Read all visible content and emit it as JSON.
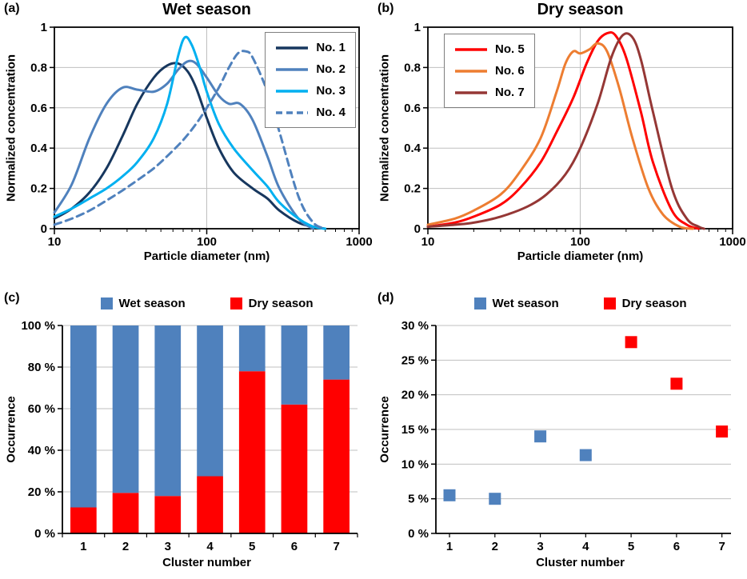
{
  "figure": {
    "panels": {
      "a": {
        "label": "(a)",
        "title": "Wet season",
        "xlabel": "Particle diameter (nm)",
        "ylabel": "Normalized concentration"
      },
      "b": {
        "label": "(b)",
        "title": "Dry season",
        "xlabel": "Particle diameter (nm)",
        "ylabel": "Normalized concentration"
      },
      "c": {
        "label": "(c)",
        "xlabel": "Cluster number",
        "ylabel": "Occurrence"
      },
      "d": {
        "label": "(d)",
        "xlabel": "Cluster number",
        "ylabel": "Occurrence"
      }
    },
    "colors": {
      "wet_blue": "#4F81BD",
      "dry_red": "#FF0000",
      "gridline": "#BFBFBF"
    }
  },
  "chart_data": [
    {
      "id": "a",
      "type": "line",
      "title": "Wet season",
      "xlabel": "Particle diameter (nm)",
      "ylabel": "Normalized concentration",
      "xscale": "log",
      "xlim": [
        10,
        1000
      ],
      "ylim": [
        0,
        1
      ],
      "xticks": [
        10,
        100,
        1000
      ],
      "yticks": [
        0,
        0.2,
        0.4,
        0.6,
        0.8,
        1
      ],
      "xgrid": [
        100
      ],
      "legend_position": "top-right",
      "series": [
        {
          "name": "No. 1",
          "color": "#17375E",
          "dash": null,
          "x": [
            10,
            13,
            17,
            22,
            28,
            35,
            45,
            55,
            65,
            75,
            85,
            100,
            120,
            150,
            200,
            250,
            300,
            400,
            500,
            600
          ],
          "y": [
            0.05,
            0.1,
            0.18,
            0.3,
            0.46,
            0.62,
            0.75,
            0.81,
            0.82,
            0.78,
            0.7,
            0.55,
            0.4,
            0.28,
            0.2,
            0.15,
            0.09,
            0.03,
            0.01,
            0.0
          ]
        },
        {
          "name": "No. 2",
          "color": "#4F81BD",
          "dash": null,
          "x": [
            10,
            13,
            17,
            22,
            28,
            35,
            45,
            55,
            65,
            75,
            85,
            100,
            120,
            140,
            165,
            200,
            250,
            300,
            400,
            500
          ],
          "y": [
            0.08,
            0.22,
            0.45,
            0.62,
            0.7,
            0.69,
            0.68,
            0.72,
            0.79,
            0.83,
            0.82,
            0.75,
            0.66,
            0.62,
            0.62,
            0.54,
            0.36,
            0.2,
            0.05,
            0.0
          ]
        },
        {
          "name": "No. 3",
          "color": "#00B0F0",
          "dash": null,
          "x": [
            10,
            13,
            17,
            22,
            28,
            35,
            45,
            55,
            65,
            72,
            80,
            90,
            100,
            120,
            150,
            200,
            250,
            300,
            400,
            500,
            600
          ],
          "y": [
            0.06,
            0.1,
            0.15,
            0.2,
            0.26,
            0.33,
            0.45,
            0.62,
            0.86,
            0.95,
            0.91,
            0.8,
            0.68,
            0.52,
            0.4,
            0.29,
            0.21,
            0.13,
            0.05,
            0.01,
            0.0
          ]
        },
        {
          "name": "No. 4",
          "color": "#4F81BD",
          "dash": "9,6",
          "x": [
            10,
            13,
            17,
            22,
            28,
            35,
            45,
            55,
            70,
            85,
            100,
            120,
            140,
            160,
            180,
            200,
            250,
            300,
            400,
            500,
            600
          ],
          "y": [
            0.02,
            0.05,
            0.09,
            0.14,
            0.19,
            0.24,
            0.3,
            0.36,
            0.44,
            0.52,
            0.6,
            0.7,
            0.8,
            0.87,
            0.88,
            0.85,
            0.68,
            0.48,
            0.16,
            0.03,
            0.0
          ]
        }
      ]
    },
    {
      "id": "b",
      "type": "line",
      "title": "Dry season",
      "xlabel": "Particle diameter (nm)",
      "ylabel": "Normalized concentration",
      "xscale": "log",
      "xlim": [
        10,
        1000
      ],
      "ylim": [
        0,
        1
      ],
      "xticks": [
        10,
        100,
        1000
      ],
      "yticks": [
        0,
        0.2,
        0.4,
        0.6,
        0.8,
        1
      ],
      "xgrid": [
        100
      ],
      "legend_position": "top-left",
      "series": [
        {
          "name": "No. 5",
          "color": "#FF0000",
          "dash": null,
          "x": [
            10,
            15,
            20,
            30,
            40,
            55,
            70,
            90,
            110,
            130,
            150,
            170,
            200,
            250,
            300,
            400,
            500,
            600
          ],
          "y": [
            0.01,
            0.03,
            0.06,
            0.12,
            0.2,
            0.33,
            0.48,
            0.65,
            0.82,
            0.93,
            0.97,
            0.96,
            0.85,
            0.58,
            0.33,
            0.09,
            0.02,
            0.0
          ]
        },
        {
          "name": "No. 6",
          "color": "#ED7D31",
          "dash": null,
          "x": [
            10,
            15,
            20,
            30,
            40,
            55,
            70,
            80,
            90,
            100,
            115,
            130,
            150,
            180,
            220,
            280,
            350,
            450,
            550
          ],
          "y": [
            0.02,
            0.05,
            0.09,
            0.17,
            0.28,
            0.45,
            0.68,
            0.82,
            0.88,
            0.87,
            0.89,
            0.92,
            0.88,
            0.7,
            0.45,
            0.2,
            0.07,
            0.01,
            0.0
          ]
        },
        {
          "name": "No. 7",
          "color": "#953735",
          "dash": null,
          "x": [
            10,
            15,
            20,
            30,
            45,
            60,
            80,
            100,
            130,
            160,
            190,
            220,
            250,
            300,
            400,
            500,
            600,
            650
          ],
          "y": [
            0.01,
            0.02,
            0.03,
            0.06,
            0.11,
            0.17,
            0.27,
            0.4,
            0.62,
            0.85,
            0.96,
            0.95,
            0.84,
            0.58,
            0.2,
            0.05,
            0.01,
            0.0
          ]
        }
      ]
    },
    {
      "id": "c",
      "type": "bar",
      "stacked": true,
      "categories": [
        "1",
        "2",
        "3",
        "4",
        "5",
        "6",
        "7"
      ],
      "xlabel": "Cluster number",
      "ylabel": "Occurrence",
      "ylim": [
        0,
        100
      ],
      "yticks": [
        0,
        20,
        40,
        60,
        80,
        100
      ],
      "ytick_suffix": " %",
      "legend_position": "top",
      "series": [
        {
          "name": "Dry season",
          "color": "#FF0000",
          "values": [
            12.5,
            19.5,
            18,
            27.5,
            78,
            62,
            74
          ]
        },
        {
          "name": "Wet season",
          "color": "#4F81BD",
          "values": [
            87.5,
            80.5,
            82,
            72.5,
            22,
            38,
            26
          ]
        }
      ],
      "legend": [
        {
          "label": "Wet season",
          "color": "#4F81BD"
        },
        {
          "label": "Dry season",
          "color": "#FF0000"
        }
      ]
    },
    {
      "id": "d",
      "type": "scatter",
      "xlabel": "Cluster number",
      "ylabel": "Occurrence",
      "x": [
        1,
        2,
        3,
        4,
        5,
        6,
        7
      ],
      "y": [
        5.5,
        5.0,
        14.0,
        11.3,
        27.6,
        21.6,
        14.7
      ],
      "point_colors": [
        "#4F81BD",
        "#4F81BD",
        "#4F81BD",
        "#4F81BD",
        "#FF0000",
        "#FF0000",
        "#FF0000"
      ],
      "xlim": [
        0.7,
        7.2
      ],
      "xticks": [
        1,
        2,
        3,
        4,
        5,
        6,
        7
      ],
      "ylim": [
        0,
        30
      ],
      "yticks": [
        0,
        5,
        10,
        15,
        20,
        25,
        30
      ],
      "ytick_suffix": " %",
      "marker": "square",
      "marker_size": 15,
      "legend_position": "top",
      "legend": [
        {
          "label": "Wet season",
          "color": "#4F81BD"
        },
        {
          "label": "Dry season",
          "color": "#FF0000"
        }
      ]
    }
  ]
}
